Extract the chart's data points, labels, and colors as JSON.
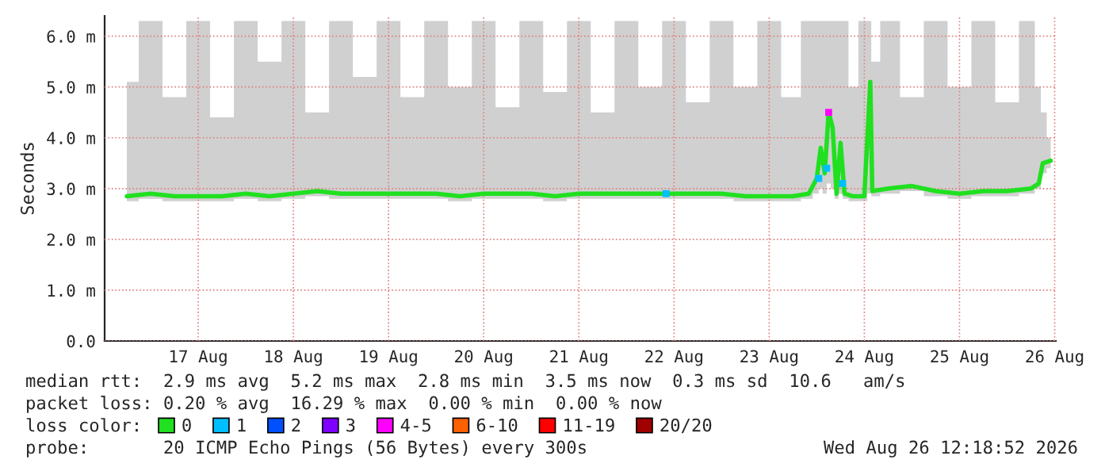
{
  "chart_data": {
    "type": "line",
    "ylabel": "Seconds",
    "legend_title": "loss color:",
    "x": [
      "2026-08-16T18:00",
      "2026-08-17T00:00",
      "2026-08-17T06:00",
      "2026-08-17T12:00",
      "2026-08-17T18:00",
      "2026-08-18T00:00",
      "2026-08-18T06:00",
      "2026-08-18T12:00",
      "2026-08-18T18:00",
      "2026-08-19T00:00",
      "2026-08-19T06:00",
      "2026-08-19T12:00",
      "2026-08-19T18:00",
      "2026-08-20T00:00",
      "2026-08-20T06:00",
      "2026-08-20T12:00",
      "2026-08-20T18:00",
      "2026-08-21T00:00",
      "2026-08-21T06:00",
      "2026-08-21T12:00",
      "2026-08-21T18:00",
      "2026-08-22T00:00",
      "2026-08-22T06:00",
      "2026-08-22T12:00",
      "2026-08-22T18:00",
      "2026-08-23T00:00",
      "2026-08-23T06:00",
      "2026-08-23T12:00",
      "2026-08-23T18:00",
      "2026-08-23T22:00",
      "2026-08-24T00:00",
      "2026-08-24T01:00",
      "2026-08-24T02:00",
      "2026-08-24T03:00",
      "2026-08-24T04:00",
      "2026-08-24T05:00",
      "2026-08-24T06:00",
      "2026-08-24T07:00",
      "2026-08-24T09:00",
      "2026-08-24T12:00",
      "2026-08-24T13:30",
      "2026-08-24T14:00",
      "2026-08-24T18:00",
      "2026-08-25T00:00",
      "2026-08-25T06:00",
      "2026-08-25T12:00",
      "2026-08-25T18:00",
      "2026-08-26T00:00",
      "2026-08-26T06:00",
      "2026-08-26T08:00",
      "2026-08-26T09:00",
      "2026-08-26T11:00"
    ],
    "series": [
      {
        "name": "0",
        "color": "#20e020",
        "values": [
          2.85,
          2.9,
          2.85,
          2.85,
          2.85,
          2.9,
          2.85,
          2.9,
          2.95,
          2.9,
          2.9,
          2.9,
          2.9,
          2.9,
          2.85,
          2.9,
          2.9,
          2.9,
          2.85,
          2.9,
          2.9,
          2.9,
          2.9,
          2.9,
          2.9,
          2.9,
          2.85,
          2.85,
          2.85,
          2.9,
          3.2,
          3.8,
          3.3,
          4.5,
          4.2,
          2.9,
          3.9,
          2.9,
          2.85,
          2.85,
          5.1,
          2.95,
          3.0,
          3.05,
          2.95,
          2.9,
          2.95,
          2.95,
          3.0,
          3.1,
          3.5,
          3.55
        ],
        "lower": [
          2.75,
          2.8,
          2.75,
          2.75,
          2.75,
          2.8,
          2.75,
          2.8,
          2.85,
          2.8,
          2.8,
          2.8,
          2.8,
          2.8,
          2.75,
          2.8,
          2.8,
          2.8,
          2.75,
          2.8,
          2.8,
          2.8,
          2.8,
          2.8,
          2.8,
          2.8,
          2.75,
          2.75,
          2.75,
          2.8,
          2.9,
          3.0,
          2.9,
          3.1,
          3.0,
          2.8,
          2.9,
          2.8,
          2.75,
          2.75,
          2.9,
          2.85,
          2.9,
          2.95,
          2.85,
          2.8,
          2.85,
          2.85,
          2.9,
          3.0,
          3.3,
          3.4
        ],
        "upper": [
          5.1,
          6.3,
          4.8,
          6.3,
          4.4,
          6.3,
          5.5,
          6.3,
          4.5,
          6.3,
          5.2,
          6.3,
          4.8,
          6.3,
          5.0,
          6.3,
          4.6,
          6.3,
          4.9,
          6.3,
          4.5,
          6.3,
          5.0,
          6.3,
          4.7,
          6.3,
          5.0,
          6.3,
          4.8,
          6.3,
          6.3,
          6.3,
          6.3,
          6.3,
          6.3,
          6.3,
          6.3,
          6.3,
          5.0,
          6.3,
          6.3,
          5.5,
          6.3,
          4.8,
          6.3,
          5.0,
          6.3,
          4.7,
          6.3,
          5.0,
          4.5,
          4.0
        ]
      },
      {
        "name": "1",
        "type": "scatter",
        "color": "#00bfff",
        "x": [
          "2026-08-24T00:30",
          "2026-08-24T02:30",
          "2026-08-24T06:30",
          "2026-08-22T10:00"
        ],
        "values": [
          3.2,
          3.4,
          3.1,
          2.9
        ]
      },
      {
        "name": "2",
        "type": "scatter",
        "color": "#0050ff",
        "values": [
          null,
          null,
          null,
          null,
          null,
          null,
          null,
          null,
          null,
          null,
          null,
          null,
          null,
          null,
          null,
          null,
          null,
          null,
          null,
          null,
          null,
          null,
          null,
          null,
          null,
          null,
          null,
          null,
          null,
          null,
          null,
          null,
          null,
          null,
          null,
          null,
          null,
          null,
          null,
          null,
          null,
          null,
          null,
          null,
          null,
          null,
          null,
          null,
          null,
          null,
          null,
          null
        ]
      },
      {
        "name": "3",
        "type": "scatter",
        "color": "#8000ff",
        "values": [
          null,
          null,
          null,
          null,
          null,
          null,
          null,
          null,
          null,
          null,
          null,
          null,
          null,
          null,
          null,
          null,
          null,
          null,
          null,
          null,
          null,
          null,
          null,
          null,
          null,
          null,
          null,
          null,
          null,
          null,
          null,
          null,
          null,
          null,
          null,
          null,
          null,
          null,
          null,
          null,
          null,
          null,
          null,
          null,
          null,
          null,
          null,
          null,
          null,
          null,
          null,
          null
        ]
      },
      {
        "name": "4-5",
        "type": "scatter",
        "color": "#ff00ff",
        "x": [
          "2026-08-24T03:00"
        ],
        "values": [
          4.5
        ]
      },
      {
        "name": "6-10",
        "type": "scatter",
        "color": "#ff6000",
        "values": [
          null,
          null,
          null,
          null,
          null,
          null,
          null,
          null,
          null,
          null,
          null,
          null,
          null,
          null,
          null,
          null,
          null,
          null,
          null,
          null,
          null,
          null,
          null,
          null,
          null,
          null,
          null,
          null,
          null,
          null,
          null,
          null,
          null,
          null,
          null,
          null,
          null,
          null,
          null,
          null,
          null,
          null,
          null,
          null,
          null,
          null,
          null,
          null,
          null,
          null,
          null,
          null
        ]
      },
      {
        "name": "11-19",
        "type": "scatter",
        "color": "#ff0000",
        "values": [
          null,
          null,
          null,
          null,
          null,
          null,
          null,
          null,
          null,
          null,
          null,
          null,
          null,
          null,
          null,
          null,
          null,
          null,
          null,
          null,
          null,
          null,
          null,
          null,
          null,
          null,
          null,
          null,
          null,
          null,
          null,
          null,
          null,
          null,
          null,
          null,
          null,
          null,
          null,
          null,
          null,
          null,
          null,
          null,
          null,
          null,
          null,
          null,
          null,
          null,
          null,
          null
        ]
      },
      {
        "name": "20/20",
        "type": "scatter",
        "color": "#a00000",
        "values": [
          null,
          null,
          null,
          null,
          null,
          null,
          null,
          null,
          null,
          null,
          null,
          null,
          null,
          null,
          null,
          null,
          null,
          null,
          null,
          null,
          null,
          null,
          null,
          null,
          null,
          null,
          null,
          null,
          null,
          null,
          null,
          null,
          null,
          null,
          null,
          null,
          null,
          null,
          null,
          null,
          null,
          null,
          null,
          null,
          null,
          null,
          null,
          null,
          null,
          null,
          null,
          null
        ]
      }
    ],
    "xlim": [
      "2026-08-16T12:24",
      "2026-08-26T12:18"
    ],
    "xticks": [
      {
        "value": "2026-08-17T12:00",
        "label": "17 Aug"
      },
      {
        "value": "2026-08-18T12:00",
        "label": "18 Aug"
      },
      {
        "value": "2026-08-19T12:00",
        "label": "19 Aug"
      },
      {
        "value": "2026-08-20T12:00",
        "label": "20 Aug"
      },
      {
        "value": "2026-08-21T12:00",
        "label": "21 Aug"
      },
      {
        "value": "2026-08-22T12:00",
        "label": "22 Aug"
      },
      {
        "value": "2026-08-23T12:00",
        "label": "23 Aug"
      },
      {
        "value": "2026-08-24T12:00",
        "label": "24 Aug"
      },
      {
        "value": "2026-08-25T12:00",
        "label": "25 Aug"
      },
      {
        "value": "2026-08-26T12:00",
        "label": "26 Aug"
      }
    ],
    "ylim": [
      0,
      6.4
    ],
    "yticks": [
      {
        "value": 0,
        "label": "0.0"
      },
      {
        "value": 1,
        "label": "1.0 m"
      },
      {
        "value": 2,
        "label": "2.0 m"
      },
      {
        "value": 3,
        "label": "3.0 m"
      },
      {
        "value": 4,
        "label": "4.0 m"
      },
      {
        "value": 5,
        "label": "5.0 m"
      },
      {
        "value": 6,
        "label": "6.0 m"
      }
    ],
    "grid": true,
    "legend": "bottom",
    "annotations": [
      "median rtt:  2.9 ms avg  5.2 ms max  2.8 ms min  3.5 ms now  0.3 ms sd  10.6   am/s",
      "packet loss: 0.20 % avg  16.29 % max  0.00 % min  0.00 % now",
      "probe:       20 ICMP Echo Pings (56 Bytes) every 300s",
      "Wed Aug 26 12:18:52 2026"
    ]
  }
}
